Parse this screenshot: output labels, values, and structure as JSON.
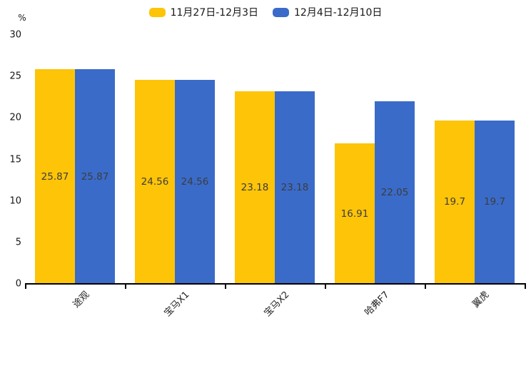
{
  "legend": {
    "items": [
      {
        "label": "11月27日-12月3日",
        "color": "#FDC408"
      },
      {
        "label": "12月4日-12月10日",
        "color": "#3A6BC9"
      }
    ]
  },
  "chart_data": {
    "type": "bar",
    "title": "",
    "ylabel": "%",
    "xlabel": "",
    "ylim": [
      0,
      30
    ],
    "yticks": [
      0,
      5,
      10,
      15,
      20,
      25,
      30
    ],
    "grid": false,
    "legend_position": "top-center",
    "value_labels": "inside-center",
    "categories": [
      "途观",
      "宝马X1",
      "宝马X2",
      "哈弗F7",
      "翼虎"
    ],
    "series": [
      {
        "name": "11月27日-12月3日",
        "color": "#FDC408",
        "values": [
          25.87,
          24.56,
          23.18,
          16.91,
          19.7
        ]
      },
      {
        "name": "12月4日-12月10日",
        "color": "#3A6BC9",
        "values": [
          25.87,
          24.56,
          23.18,
          22.05,
          19.7
        ]
      }
    ]
  }
}
